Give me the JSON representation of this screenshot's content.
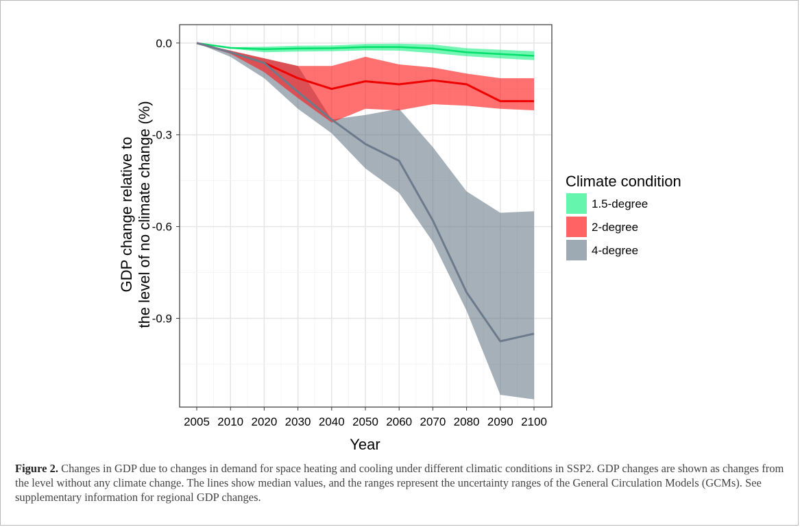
{
  "chart_data": {
    "type": "area",
    "title": "",
    "xlabel": "Year",
    "ylabel": "GDP change relative to the level of no climate change (%)",
    "ylabel_lines": [
      "GDP change relative to",
      "the level of no climate change (%)"
    ],
    "x": [
      2005,
      2010,
      2020,
      2030,
      2040,
      2050,
      2060,
      2070,
      2080,
      2090,
      2100
    ],
    "x_tick_labels": [
      "2005",
      "2010",
      "2020",
      "2030",
      "2040",
      "2050",
      "2060",
      "2070",
      "2080",
      "2090",
      "2100"
    ],
    "y_ticks": [
      0.0,
      -0.3,
      -0.6,
      -0.9
    ],
    "y_tick_labels": [
      "0.0",
      "-0.3",
      "-0.6",
      "-0.9"
    ],
    "ylim": [
      -1.19,
      0.06
    ],
    "grid": true,
    "legend": {
      "title": "Climate condition",
      "position": "right",
      "entries": [
        "1.5-degree",
        "2-degree",
        "4-degree"
      ]
    },
    "series": [
      {
        "name": "1.5-degree",
        "color": "#00ee76",
        "median": [
          0.0,
          -0.016,
          -0.02,
          -0.018,
          -0.017,
          -0.013,
          -0.013,
          -0.018,
          -0.03,
          -0.036,
          -0.042
        ],
        "lower": [
          0.0,
          -0.018,
          -0.03,
          -0.028,
          -0.027,
          -0.024,
          -0.025,
          -0.033,
          -0.043,
          -0.05,
          -0.056
        ],
        "upper": [
          0.0,
          -0.014,
          -0.012,
          -0.009,
          -0.008,
          -0.003,
          -0.002,
          -0.005,
          -0.017,
          -0.022,
          -0.027
        ]
      },
      {
        "name": "2-degree",
        "color": "#ee0000",
        "median": [
          0.0,
          -0.03,
          -0.065,
          -0.115,
          -0.15,
          -0.125,
          -0.135,
          -0.122,
          -0.135,
          -0.19,
          -0.19
        ],
        "lower": [
          0.0,
          -0.035,
          -0.095,
          -0.18,
          -0.26,
          -0.215,
          -0.22,
          -0.2,
          -0.205,
          -0.215,
          -0.22
        ],
        "upper": [
          0.0,
          -0.025,
          -0.05,
          -0.075,
          -0.075,
          -0.045,
          -0.07,
          -0.08,
          -0.1,
          -0.115,
          -0.115
        ]
      },
      {
        "name": "4-degree",
        "color": "#6b7b8c",
        "median": [
          0.0,
          -0.03,
          -0.065,
          -0.16,
          -0.25,
          -0.33,
          -0.385,
          -0.58,
          -0.815,
          -0.975,
          -0.95
        ],
        "lower": [
          0.0,
          -0.045,
          -0.115,
          -0.215,
          -0.295,
          -0.41,
          -0.49,
          -0.65,
          -0.875,
          -1.15,
          -1.165
        ],
        "upper": [
          0.0,
          -0.025,
          -0.05,
          -0.075,
          -0.25,
          -0.235,
          -0.215,
          -0.34,
          -0.485,
          -0.555,
          -0.55
        ]
      }
    ]
  },
  "caption": {
    "label": "Figure 2.",
    "text": " Changes in GDP due to changes in demand for space heating and cooling under different climatic conditions in SSP2. GDP changes are shown as changes from the level without any climate change. The lines show median values, and the ranges represent the uncertainty ranges of the General Circulation Models (GCMs). See supplementary information for regional GDP changes."
  }
}
